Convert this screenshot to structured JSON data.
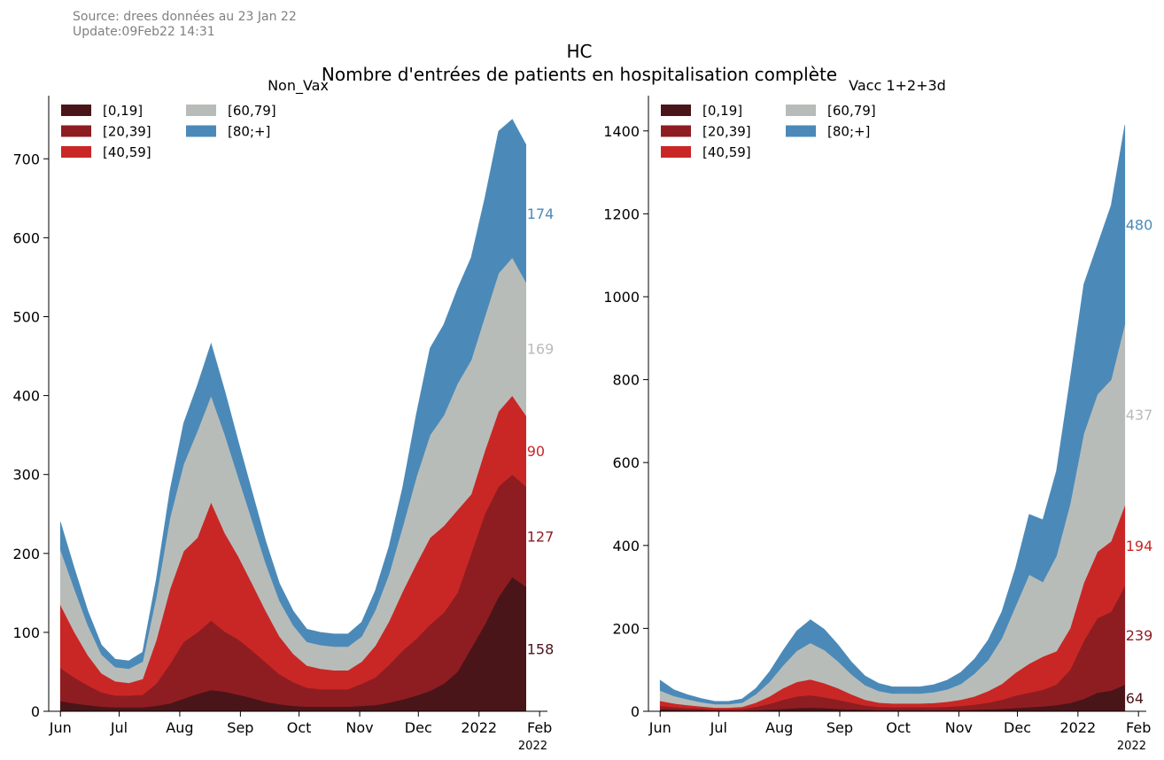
{
  "header": {
    "source_line": "Source: drees données au 23 Jan 22",
    "update_line": "Update:09Feb22 14:31",
    "title_line1": "HC",
    "title_line2": "Nombre d'entrées de patients en hospitalisation complète"
  },
  "colors": {
    "[0,19]": "#4a1519",
    "[20,39]": "#8e1d22",
    "[40,59]": "#c92725",
    "[60,79]": "#b8bcb9",
    "[80;+]": "#4b8ab8"
  },
  "chart_data": [
    {
      "type": "area",
      "stacked": true,
      "title": "Non_Vax",
      "x_ticks": [
        "Jun",
        "Jul",
        "Aug",
        "Sep",
        "Oct",
        "Nov",
        "Dec",
        "2022",
        "Feb"
      ],
      "x_sublabel": "2022",
      "x_range": [
        "2021-05-26",
        "2022-02-05"
      ],
      "ylim": [
        0,
        780
      ],
      "y_ticks": [
        0,
        100,
        200,
        300,
        400,
        500,
        600,
        700
      ],
      "legend": [
        "[0,19]",
        "[20,39]",
        "[40,59]",
        "[60,79]",
        "[80;+]"
      ],
      "legend_position": "top-left",
      "x": [
        "2021-06-01",
        "2021-06-08",
        "2021-06-15",
        "2021-06-22",
        "2021-06-29",
        "2021-07-06",
        "2021-07-13",
        "2021-07-20",
        "2021-07-27",
        "2021-08-03",
        "2021-08-10",
        "2021-08-17",
        "2021-08-24",
        "2021-08-31",
        "2021-09-07",
        "2021-09-14",
        "2021-09-21",
        "2021-09-28",
        "2021-10-05",
        "2021-10-12",
        "2021-10-19",
        "2021-10-26",
        "2021-11-02",
        "2021-11-09",
        "2021-11-16",
        "2021-11-23",
        "2021-11-30",
        "2021-12-07",
        "2021-12-14",
        "2021-12-21",
        "2021-12-28",
        "2022-01-04",
        "2022-01-11",
        "2022-01-18",
        "2022-01-25"
      ],
      "series": [
        {
          "name": "[0,19]",
          "values": [
            13,
            10,
            8,
            6,
            5,
            5,
            5,
            7,
            10,
            16,
            22,
            27,
            25,
            21,
            17,
            12,
            9,
            7,
            6,
            6,
            6,
            6,
            7,
            8,
            11,
            15,
            20,
            26,
            35,
            50,
            80,
            110,
            145,
            170,
            158
          ]
        },
        {
          "name": "[20,39]",
          "values": [
            42,
            33,
            25,
            18,
            15,
            15,
            16,
            28,
            50,
            72,
            78,
            88,
            76,
            70,
            60,
            50,
            38,
            30,
            24,
            22,
            22,
            22,
            28,
            35,
            48,
            62,
            72,
            84,
            90,
            100,
            120,
            140,
            140,
            130,
            127
          ]
        },
        {
          "name": "[40,59]",
          "values": [
            80,
            58,
            38,
            24,
            18,
            16,
            20,
            55,
            95,
            115,
            120,
            150,
            125,
            105,
            85,
            65,
            48,
            36,
            28,
            26,
            24,
            24,
            28,
            40,
            55,
            75,
            95,
            110,
            110,
            105,
            75,
            80,
            95,
            100,
            90
          ]
        },
        {
          "name": "[60,79]",
          "values": [
            70,
            55,
            38,
            24,
            18,
            18,
            22,
            55,
            90,
            110,
            135,
            135,
            125,
            100,
            80,
            60,
            45,
            36,
            30,
            30,
            30,
            30,
            32,
            45,
            60,
            82,
            110,
            130,
            140,
            160,
            170,
            170,
            175,
            175,
            169
          ]
        },
        {
          "name": "[80;+]",
          "values": [
            35,
            26,
            18,
            12,
            10,
            10,
            12,
            22,
            35,
            52,
            58,
            66,
            55,
            45,
            36,
            28,
            22,
            18,
            16,
            16,
            16,
            16,
            18,
            25,
            35,
            50,
            80,
            110,
            115,
            120,
            130,
            150,
            180,
            175,
            174
          ]
        }
      ],
      "end_labels": [
        {
          "series": "[80;+]",
          "text": "174"
        },
        {
          "series": "[60,79]",
          "text": "169"
        },
        {
          "series": "[40,59]",
          "text": "90"
        },
        {
          "series": "[20,39]",
          "text": "127"
        },
        {
          "series": "[0,19]",
          "text": "158"
        }
      ]
    },
    {
      "type": "area",
      "stacked": true,
      "title": "Vacc 1+2+3d",
      "x_ticks": [
        "Jun",
        "Jul",
        "Aug",
        "Sep",
        "Oct",
        "Nov",
        "Dec",
        "2022",
        "Feb"
      ],
      "x_sublabel": "2022",
      "x_range": [
        "2021-05-26",
        "2022-02-05"
      ],
      "ylim": [
        0,
        1485
      ],
      "y_ticks": [
        0,
        200,
        400,
        600,
        800,
        1000,
        1200,
        1400
      ],
      "legend": [
        "[0,19]",
        "[20,39]",
        "[40,59]",
        "[60,79]",
        "[80;+]"
      ],
      "legend_position": "top-left",
      "x": [
        "2021-06-01",
        "2021-06-08",
        "2021-06-15",
        "2021-06-22",
        "2021-06-29",
        "2021-07-06",
        "2021-07-13",
        "2021-07-20",
        "2021-07-27",
        "2021-08-03",
        "2021-08-10",
        "2021-08-17",
        "2021-08-24",
        "2021-08-31",
        "2021-09-07",
        "2021-09-14",
        "2021-09-21",
        "2021-09-28",
        "2021-10-05",
        "2021-10-12",
        "2021-10-19",
        "2021-10-26",
        "2021-11-02",
        "2021-11-09",
        "2021-11-16",
        "2021-11-23",
        "2021-11-30",
        "2021-12-07",
        "2021-12-14",
        "2021-12-21",
        "2021-12-28",
        "2022-01-04",
        "2022-01-11",
        "2022-01-18",
        "2022-01-25"
      ],
      "series": [
        {
          "name": "[0,19]",
          "values": [
            5,
            4,
            3,
            3,
            2,
            2,
            2,
            3,
            4,
            6,
            8,
            9,
            8,
            6,
            5,
            4,
            3,
            3,
            3,
            3,
            3,
            3,
            3,
            4,
            5,
            6,
            8,
            10,
            12,
            15,
            20,
            30,
            45,
            50,
            64
          ]
        },
        {
          "name": "[20,39]",
          "values": [
            8,
            6,
            5,
            4,
            3,
            3,
            4,
            8,
            14,
            22,
            28,
            30,
            26,
            22,
            16,
            10,
            8,
            7,
            7,
            7,
            7,
            8,
            10,
            12,
            16,
            22,
            30,
            35,
            40,
            50,
            80,
            140,
            180,
            190,
            239
          ]
        },
        {
          "name": "[40,59]",
          "values": [
            12,
            9,
            7,
            5,
            4,
            4,
            5,
            10,
            18,
            28,
            35,
            38,
            34,
            28,
            20,
            14,
            10,
            9,
            9,
            9,
            10,
            12,
            15,
            20,
            28,
            38,
            55,
            70,
            80,
            80,
            100,
            140,
            160,
            170,
            194
          ]
        },
        {
          "name": "[60,79]",
          "values": [
            25,
            18,
            14,
            10,
            8,
            8,
            10,
            20,
            35,
            55,
            75,
            88,
            80,
            65,
            48,
            35,
            28,
            24,
            24,
            24,
            26,
            30,
            38,
            55,
            75,
            110,
            160,
            215,
            180,
            230,
            300,
            360,
            380,
            390,
            437
          ]
        },
        {
          "name": "[80;+]",
          "values": [
            25,
            15,
            11,
            9,
            7,
            7,
            9,
            14,
            24,
            36,
            48,
            56,
            50,
            40,
            30,
            22,
            18,
            16,
            16,
            16,
            18,
            22,
            28,
            35,
            48,
            64,
            92,
            145,
            150,
            205,
            300,
            360,
            360,
            420,
            480
          ]
        }
      ],
      "end_labels": [
        {
          "series": "[80;+]",
          "text": "480"
        },
        {
          "series": "[60,79]",
          "text": "437"
        },
        {
          "series": "[40,59]",
          "text": "194"
        },
        {
          "series": "[20,39]",
          "text": "239"
        },
        {
          "series": "[0,19]",
          "text": "64"
        }
      ]
    }
  ]
}
